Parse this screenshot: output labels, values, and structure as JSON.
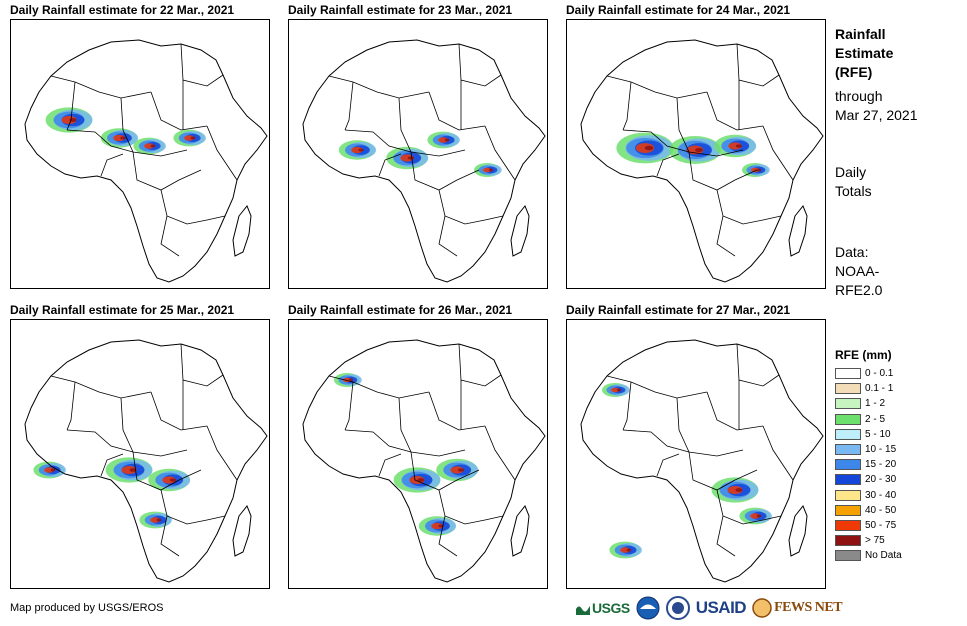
{
  "panels": [
    {
      "title": "Daily Rainfall estimate for 22 Mar., 2021"
    },
    {
      "title": "Daily Rainfall estimate for 23 Mar., 2021"
    },
    {
      "title": "Daily Rainfall estimate for 24 Mar., 2021"
    },
    {
      "title": "Daily Rainfall estimate for 25 Mar., 2021"
    },
    {
      "title": "Daily Rainfall estimate for 26 Mar., 2021"
    },
    {
      "title": "Daily Rainfall estimate for 27 Mar., 2021"
    }
  ],
  "sidebar": {
    "title_line1": "Rainfall",
    "title_line2": "Estimate",
    "title_line3": "(RFE)",
    "through_line1": "through",
    "through_line2": "Mar 27, 2021",
    "totals_line1": "Daily",
    "totals_line2": "Totals",
    "data_line1": "Data:",
    "data_line2": "NOAA-",
    "data_line3": "RFE2.0"
  },
  "legend": {
    "title": "RFE (mm)",
    "items": [
      {
        "label": "0 - 0.1",
        "color": "#ffffff"
      },
      {
        "label": "0.1 - 1",
        "color": "#f3dcb8"
      },
      {
        "label": "1 - 2",
        "color": "#c6f5bf"
      },
      {
        "label": "2 - 5",
        "color": "#6ddf6d"
      },
      {
        "label": "5 - 10",
        "color": "#bdeefa"
      },
      {
        "label": "10 - 15",
        "color": "#79b8f0"
      },
      {
        "label": "15 - 20",
        "color": "#3d87ea"
      },
      {
        "label": "20 - 30",
        "color": "#1447d8"
      },
      {
        "label": "30 - 40",
        "color": "#fde68a"
      },
      {
        "label": "40 - 50",
        "color": "#f5a200"
      },
      {
        "label": "50 - 75",
        "color": "#ef3a08"
      },
      {
        "label": "> 75",
        "color": "#8e1212"
      },
      {
        "label": "No Data",
        "color": "#8a8a8a"
      }
    ]
  },
  "credit": "Map produced by USGS/EROS",
  "logos": {
    "usgs": "USGS",
    "usaid": "USAID",
    "fewsnet": "FEWS NET"
  }
}
